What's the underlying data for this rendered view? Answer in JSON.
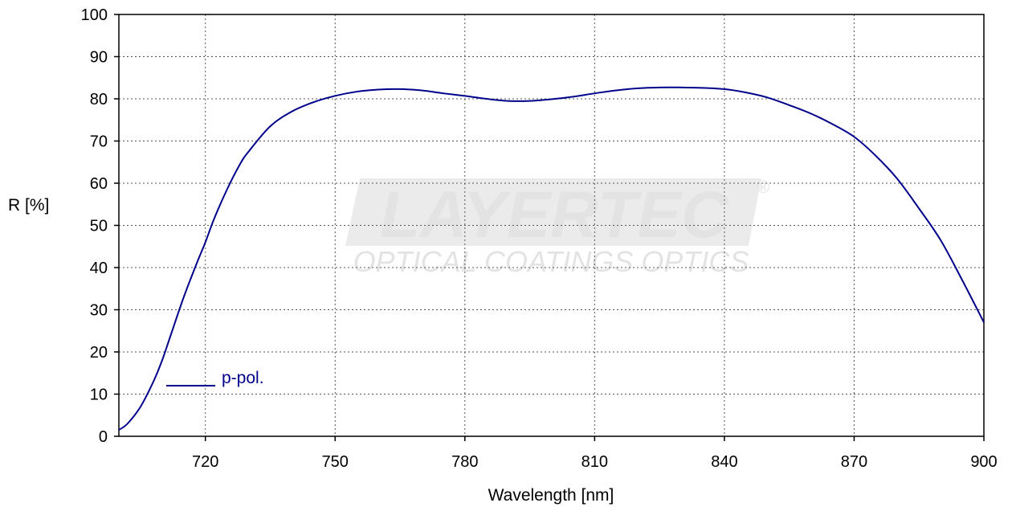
{
  "chart_data": {
    "type": "line",
    "xlabel": "Wavelength [nm]",
    "ylabel": "R [%]",
    "xlim": [
      700,
      900
    ],
    "ylim": [
      0,
      100
    ],
    "x_ticks": [
      720,
      750,
      780,
      810,
      840,
      870,
      900
    ],
    "y_ticks": [
      0,
      10,
      20,
      30,
      40,
      50,
      60,
      70,
      80,
      90,
      100
    ],
    "grid": true,
    "legend_position": "bottom-left",
    "watermark": {
      "brand": "LAYERTEC",
      "tagline": "OPTICAL COATINGS   OPTICS",
      "registered": "®"
    },
    "series": [
      {
        "name": "p-pol.",
        "color": "#00008b",
        "x": [
          700,
          702,
          705,
          708,
          710,
          712,
          715,
          718,
          720,
          722,
          725,
          728,
          730,
          735,
          740,
          745,
          750,
          755,
          760,
          765,
          770,
          775,
          780,
          785,
          790,
          795,
          800,
          805,
          810,
          815,
          820,
          825,
          830,
          835,
          840,
          845,
          850,
          855,
          860,
          865,
          870,
          875,
          880,
          885,
          890,
          895,
          900
        ],
        "y": [
          1.5,
          3.0,
          7.0,
          13.0,
          18.0,
          24.0,
          33.0,
          41.0,
          46.0,
          51.5,
          58.5,
          64.5,
          67.5,
          73.5,
          77.0,
          79.2,
          80.7,
          81.7,
          82.2,
          82.3,
          82.0,
          81.3,
          80.7,
          80.0,
          79.5,
          79.5,
          79.9,
          80.5,
          81.3,
          82.0,
          82.5,
          82.7,
          82.7,
          82.6,
          82.3,
          81.5,
          80.3,
          78.5,
          76.5,
          74.0,
          71.0,
          66.5,
          61.0,
          54.0,
          46.5,
          37.0,
          27.0
        ]
      }
    ]
  }
}
